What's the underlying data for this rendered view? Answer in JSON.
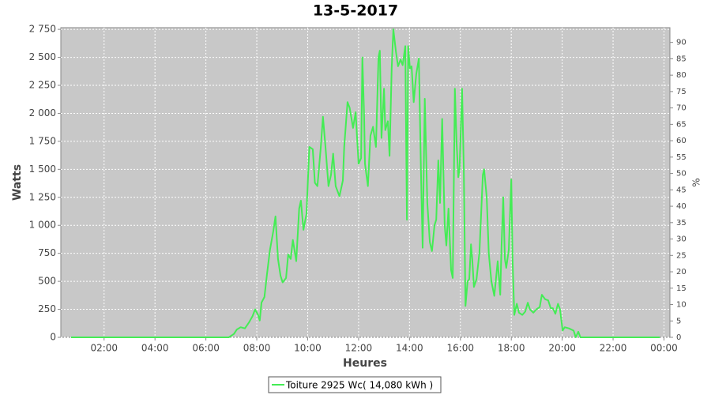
{
  "chart_data": {
    "type": "line",
    "title": "13-5-2017",
    "x_label": "Heures",
    "y_label": "Watts",
    "y2_label": "%",
    "x": [
      42,
      414,
      426,
      433,
      442,
      452,
      461,
      470,
      476,
      483,
      487,
      491,
      498,
      504,
      511,
      519,
      524,
      530,
      536,
      541,
      549,
      554,
      560,
      565,
      573,
      580,
      584,
      590,
      597,
      604,
      612,
      617,
      623,
      631,
      636,
      642,
      649,
      655,
      660,
      666,
      675,
      683,
      686,
      694,
      699,
      707,
      713,
      720,
      726,
      729,
      733,
      735,
      742,
      748,
      754,
      761,
      767,
      770,
      774,
      780,
      783,
      789,
      793,
      798,
      802,
      808,
      813,
      819,
      824,
      830,
      834,
      837,
      841,
      845,
      850,
      856,
      862,
      867,
      871,
      876,
      882,
      888,
      893,
      899,
      903,
      908,
      912,
      917,
      923,
      927,
      932,
      938,
      942,
      947,
      951,
      955,
      958,
      964,
      968,
      972,
      977,
      981,
      985,
      988,
      992,
      998,
      1005,
      1013,
      1016,
      1022,
      1027,
      1033,
      1040,
      1048,
      1054,
      1057,
      1061,
      1065,
      1068,
      1074,
      1080,
      1083,
      1087,
      1093,
      1098,
      1106,
      1113,
      1119,
      1124,
      1132,
      1139,
      1147,
      1152,
      1160,
      1167,
      1173,
      1178,
      1184,
      1190,
      1195,
      1201,
      1206,
      1216,
      1227,
      1232,
      1238,
      1243,
      1253,
      1430
    ],
    "series": [
      {
        "name": "Toiture 2925 Wc( 14,080 kWh )",
        "color": "#44ec55",
        "values": [
          0,
          0,
          30,
          70,
          90,
          80,
          130,
          190,
          250,
          200,
          150,
          310,
          360,
          560,
          780,
          950,
          1080,
          700,
          550,
          490,
          530,
          740,
          700,
          870,
          680,
          1150,
          1220,
          960,
          1100,
          1700,
          1680,
          1380,
          1350,
          1700,
          1970,
          1700,
          1350,
          1450,
          1640,
          1350,
          1260,
          1400,
          1700,
          2100,
          2050,
          1870,
          2010,
          1550,
          1600,
          2500,
          1980,
          1550,
          1350,
          1800,
          1880,
          1700,
          2500,
          2560,
          1780,
          2220,
          1850,
          1930,
          1620,
          2400,
          2750,
          2550,
          2420,
          2480,
          2430,
          2600,
          1050,
          2600,
          2400,
          2420,
          2100,
          2350,
          2490,
          1500,
          800,
          2130,
          1200,
          850,
          770,
          1000,
          1050,
          1580,
          1200,
          1950,
          1000,
          820,
          1150,
          600,
          530,
          2220,
          1750,
          1430,
          1500,
          2220,
          1500,
          280,
          500,
          520,
          830,
          700,
          450,
          520,
          760,
          1450,
          1500,
          1250,
          750,
          500,
          370,
          680,
          380,
          800,
          1250,
          700,
          620,
          780,
          1410,
          700,
          200,
          300,
          220,
          200,
          230,
          310,
          250,
          220,
          250,
          270,
          380,
          340,
          330,
          260,
          260,
          210,
          300,
          250,
          60,
          90,
          80,
          60,
          0,
          50,
          0,
          0,
          0
        ]
      }
    ],
    "xlim": [
      18,
      1454
    ],
    "xticks": [
      {
        "value": 120,
        "label": "02:00"
      },
      {
        "value": 240,
        "label": "04:00"
      },
      {
        "value": 360,
        "label": "06:00"
      },
      {
        "value": 480,
        "label": "08:00"
      },
      {
        "value": 600,
        "label": "10:00"
      },
      {
        "value": 720,
        "label": "12:00"
      },
      {
        "value": 840,
        "label": "14:00"
      },
      {
        "value": 960,
        "label": "16:00"
      },
      {
        "value": 1080,
        "label": "18:00"
      },
      {
        "value": 1200,
        "label": "20:00"
      },
      {
        "value": 1320,
        "label": "22:00"
      },
      {
        "value": 1440,
        "label": "00:00"
      }
    ],
    "ylim": [
      0,
      2765
    ],
    "yticks": [
      0,
      250,
      500,
      750,
      {
        "value": 1000,
        "label": "1 000"
      },
      {
        "value": 1250,
        "label": "1 250"
      },
      {
        "value": 1500,
        "label": "1 500"
      },
      {
        "value": 1750,
        "label": "1 750"
      },
      {
        "value": 2000,
        "label": "2 000"
      },
      {
        "value": 2250,
        "label": "2 250"
      },
      {
        "value": 2500,
        "label": "2 500"
      },
      {
        "value": 2750,
        "label": "2 750"
      }
    ],
    "y2lim": [
      0,
      94.5
    ],
    "y2ticks": [
      0,
      5,
      10,
      15,
      20,
      25,
      30,
      35,
      40,
      45,
      50,
      55,
      60,
      65,
      70,
      75,
      80,
      85,
      90
    ],
    "grid": true,
    "legend": "bottom"
  }
}
